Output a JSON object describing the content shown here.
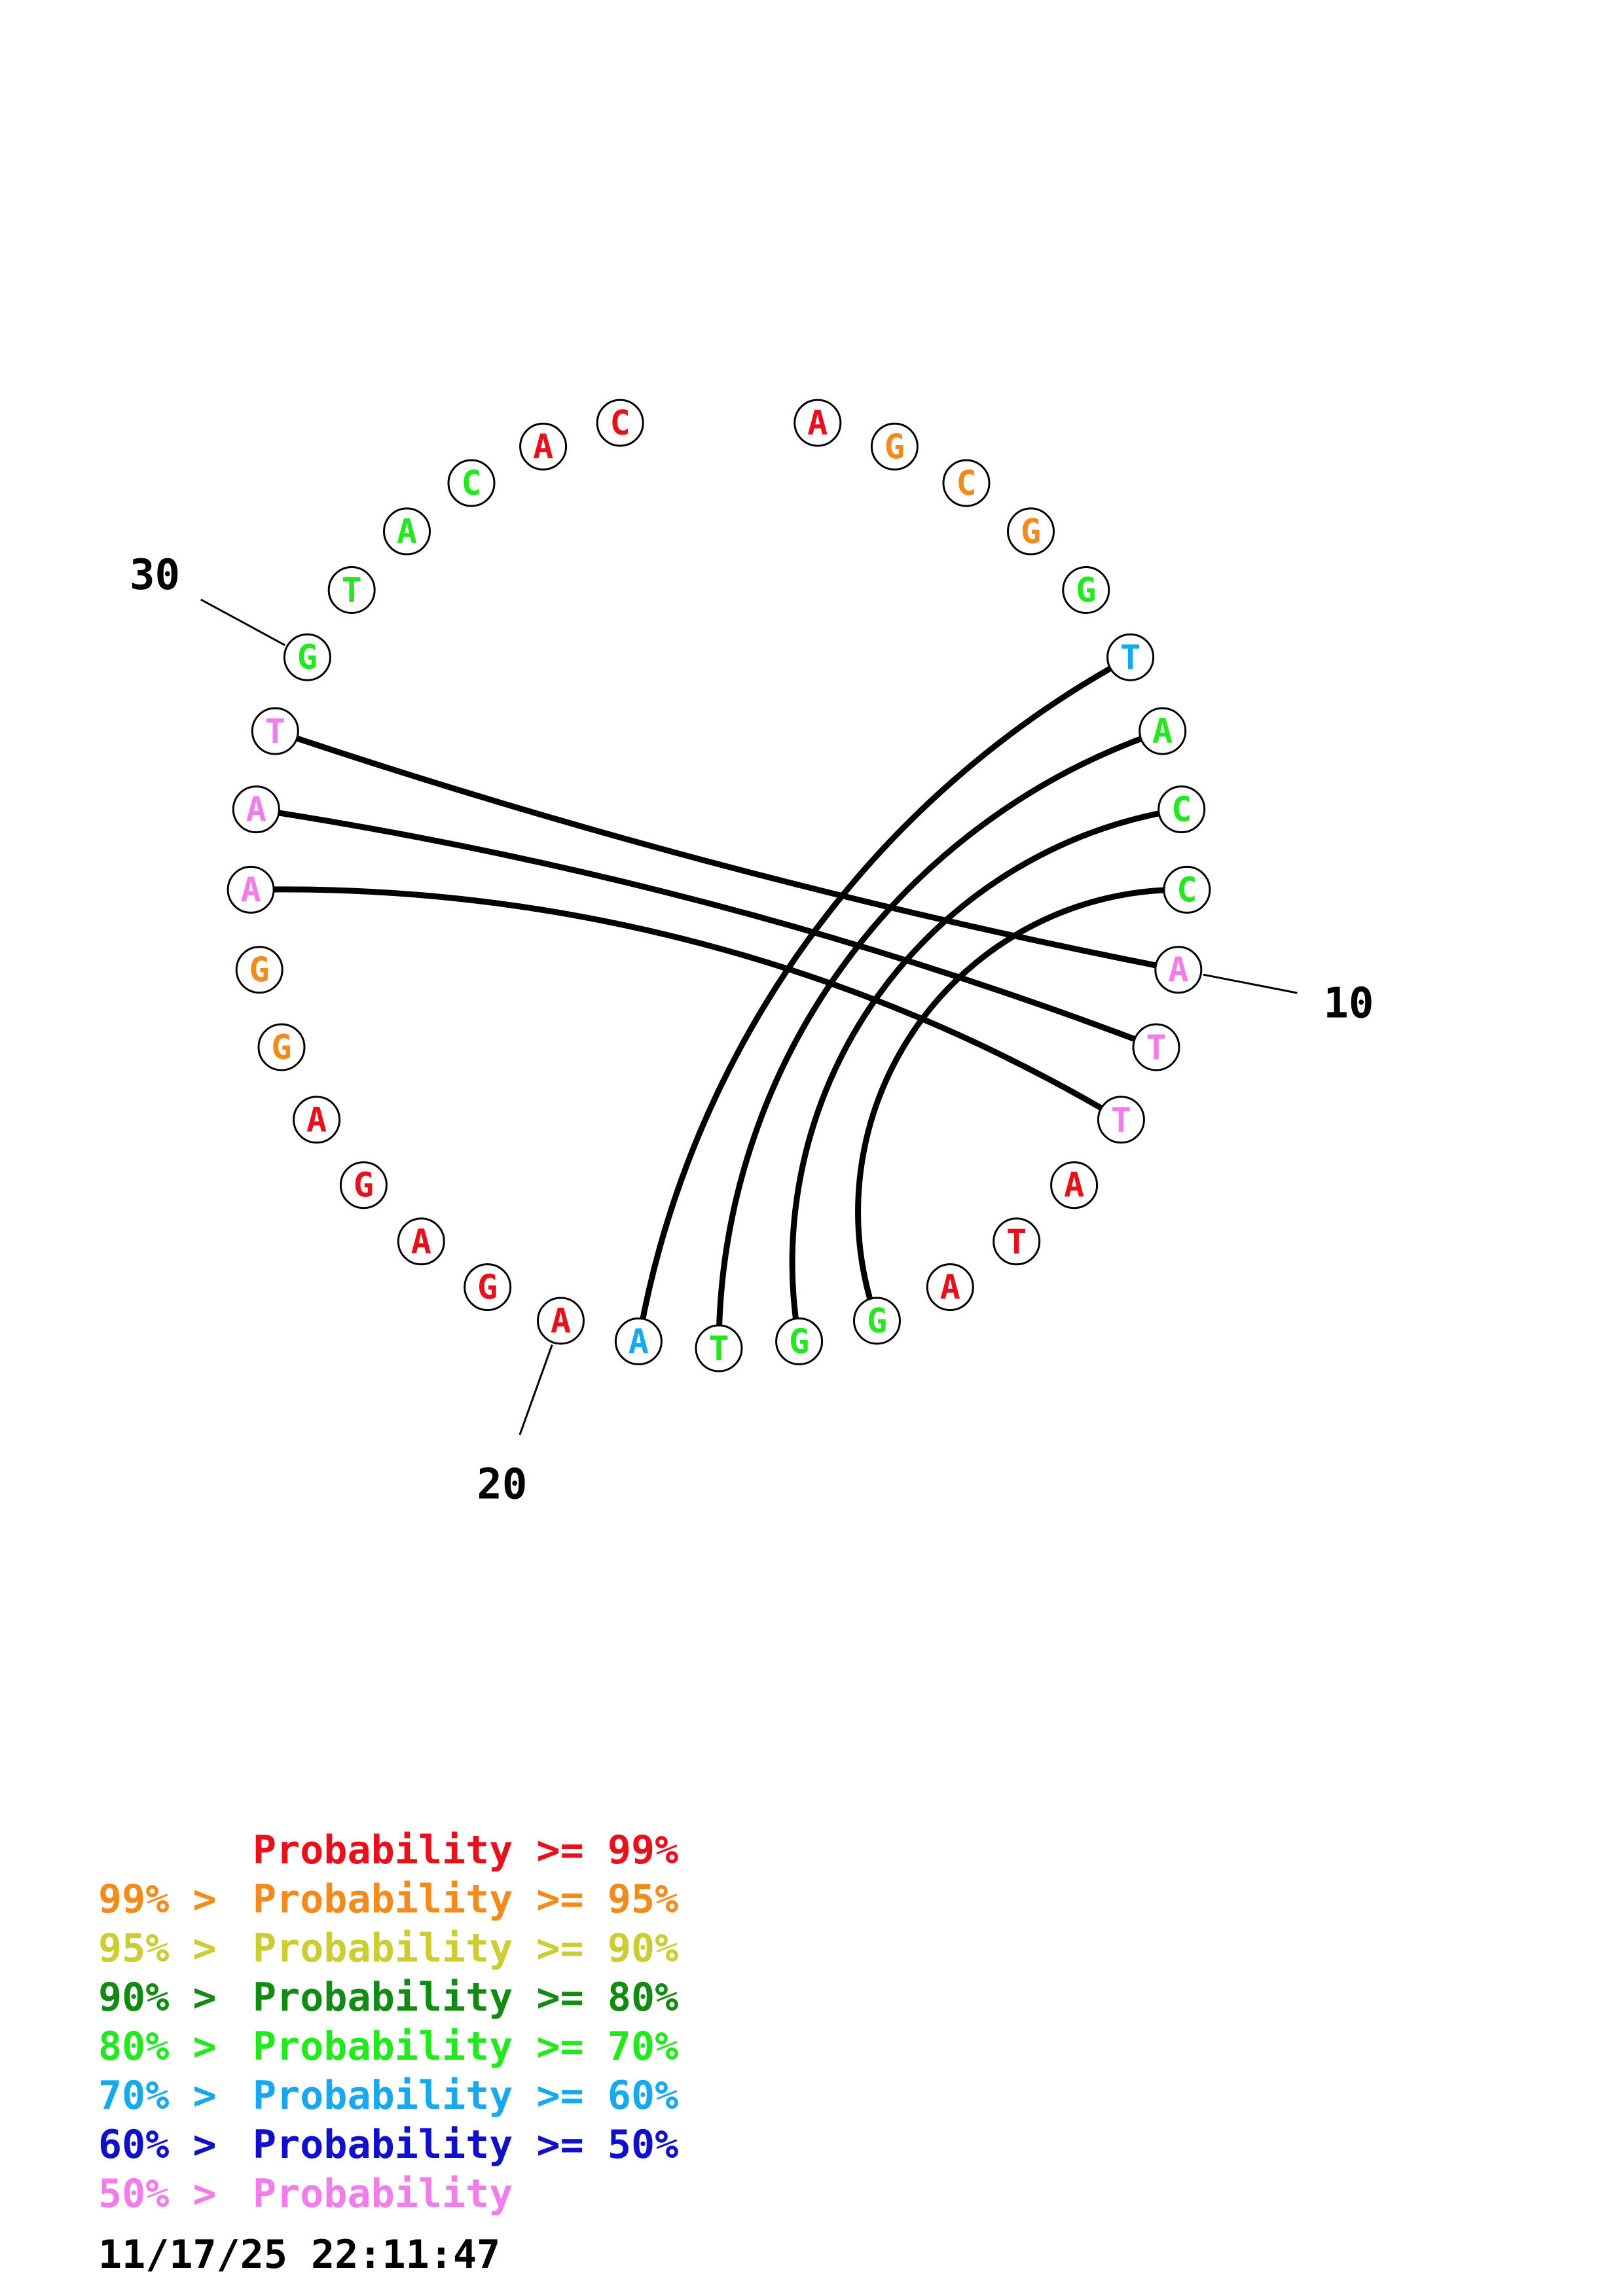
{
  "colors": {
    "red": "#e8101a",
    "orange": "#f28a1c",
    "yellow": "#cccc33",
    "darkgreen": "#138a13",
    "green": "#22e81e",
    "cyan": "#18a8ee",
    "blue": "#1010cc",
    "pink": "#f27cea"
  },
  "sequence": [
    {
      "n": 1,
      "base": "A",
      "color": "red"
    },
    {
      "n": 2,
      "base": "G",
      "color": "orange"
    },
    {
      "n": 3,
      "base": "C",
      "color": "orange"
    },
    {
      "n": 4,
      "base": "G",
      "color": "orange"
    },
    {
      "n": 5,
      "base": "G",
      "color": "green"
    },
    {
      "n": 6,
      "base": "T",
      "color": "cyan"
    },
    {
      "n": 7,
      "base": "A",
      "color": "green"
    },
    {
      "n": 8,
      "base": "C",
      "color": "green"
    },
    {
      "n": 9,
      "base": "C",
      "color": "green"
    },
    {
      "n": 10,
      "base": "A",
      "color": "pink"
    },
    {
      "n": 11,
      "base": "T",
      "color": "pink"
    },
    {
      "n": 12,
      "base": "T",
      "color": "pink"
    },
    {
      "n": 13,
      "base": "A",
      "color": "red"
    },
    {
      "n": 14,
      "base": "T",
      "color": "red"
    },
    {
      "n": 15,
      "base": "A",
      "color": "red"
    },
    {
      "n": 16,
      "base": "G",
      "color": "green"
    },
    {
      "n": 17,
      "base": "G",
      "color": "green"
    },
    {
      "n": 18,
      "base": "T",
      "color": "green"
    },
    {
      "n": 19,
      "base": "A",
      "color": "cyan"
    },
    {
      "n": 20,
      "base": "A",
      "color": "red"
    },
    {
      "n": 21,
      "base": "G",
      "color": "red"
    },
    {
      "n": 22,
      "base": "A",
      "color": "red"
    },
    {
      "n": 23,
      "base": "G",
      "color": "red"
    },
    {
      "n": 24,
      "base": "A",
      "color": "red"
    },
    {
      "n": 25,
      "base": "G",
      "color": "orange"
    },
    {
      "n": 26,
      "base": "G",
      "color": "orange"
    },
    {
      "n": 27,
      "base": "A",
      "color": "pink"
    },
    {
      "n": 28,
      "base": "A",
      "color": "pink"
    },
    {
      "n": 29,
      "base": "T",
      "color": "pink"
    },
    {
      "n": 30,
      "base": "G",
      "color": "green"
    },
    {
      "n": 31,
      "base": "T",
      "color": "green"
    },
    {
      "n": 32,
      "base": "A",
      "color": "green"
    },
    {
      "n": 33,
      "base": "C",
      "color": "green"
    },
    {
      "n": 34,
      "base": "A",
      "color": "red"
    },
    {
      "n": 35,
      "base": "C",
      "color": "red"
    }
  ],
  "pairs": [
    [
      6,
      19
    ],
    [
      7,
      18
    ],
    [
      8,
      17
    ],
    [
      9,
      16
    ],
    [
      10,
      29
    ],
    [
      11,
      28
    ],
    [
      12,
      27
    ]
  ],
  "tick_labels": [
    {
      "n": 10,
      "label": "10"
    },
    {
      "n": 20,
      "label": "20"
    },
    {
      "n": 30,
      "label": "30"
    }
  ],
  "legend": [
    {
      "lhs": "",
      "rhs": "Probability >= 99%",
      "color": "red"
    },
    {
      "lhs": "99% >",
      "rhs": "Probability >= 95%",
      "color": "orange"
    },
    {
      "lhs": "95% >",
      "rhs": "Probability >= 90%",
      "color": "yellow"
    },
    {
      "lhs": "90% >",
      "rhs": "Probability >= 80%",
      "color": "darkgreen"
    },
    {
      "lhs": "80% >",
      "rhs": "Probability >= 70%",
      "color": "green"
    },
    {
      "lhs": "70% >",
      "rhs": "Probability >= 60%",
      "color": "cyan"
    },
    {
      "lhs": "60% >",
      "rhs": "Probability >= 50%",
      "color": "blue"
    },
    {
      "lhs": "50% >",
      "rhs": "Probability",
      "color": "pink"
    }
  ],
  "timestamp": "11/17/25 22:11:47"
}
